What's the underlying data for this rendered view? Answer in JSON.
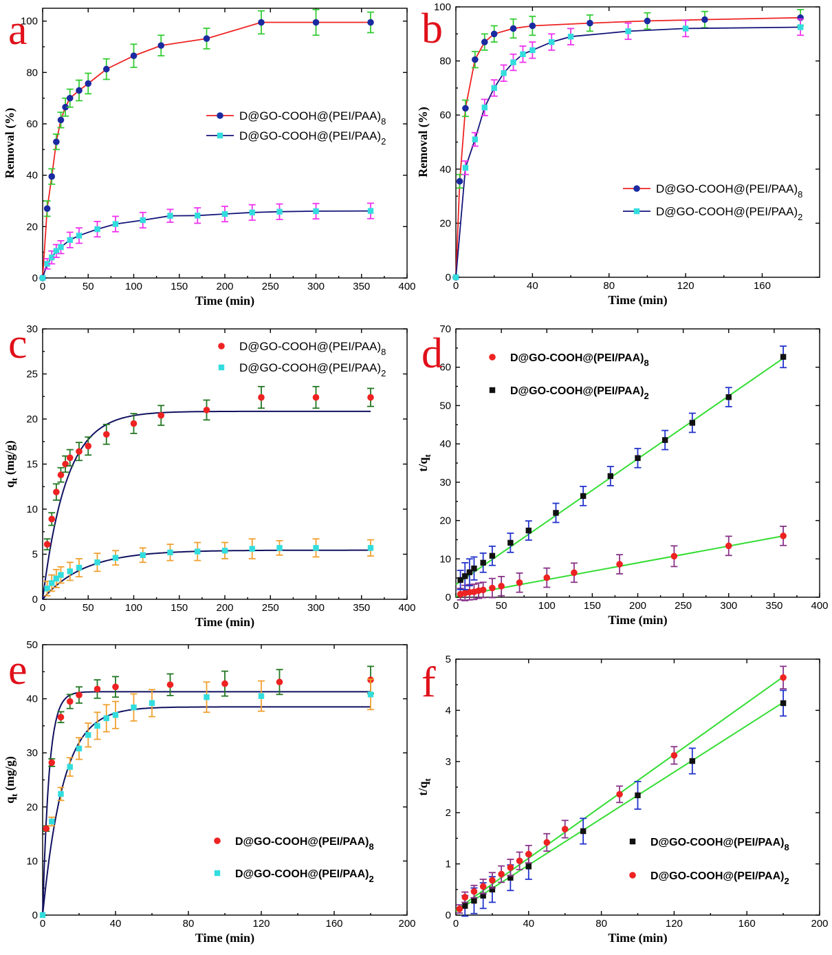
{
  "chart_data": [
    {
      "panel": "a",
      "type": "line",
      "xlabel": "Time  (min)",
      "ylabel": "Removal  (%)",
      "xlim": [
        0,
        400
      ],
      "ylim": [
        0,
        105
      ],
      "xticks": [
        0,
        50,
        100,
        150,
        200,
        250,
        300,
        350,
        400
      ],
      "yticks": [
        0,
        20,
        40,
        60,
        80,
        100
      ],
      "legend_position": "right-middle",
      "series": [
        {
          "name": "D@GO-COOH@(PEI/PAA)",
          "sub": "8",
          "line_color": "#ee2222",
          "marker": "circle",
          "marker_color": "#1a2aa0",
          "err_color": "#33cc33",
          "x": [
            0,
            5,
            10,
            15,
            20,
            25,
            30,
            40,
            50,
            70,
            100,
            130,
            180,
            240,
            300,
            360
          ],
          "y": [
            0,
            27,
            39.5,
            53,
            61.5,
            66.5,
            70,
            73,
            75.7,
            81.3,
            86.5,
            90.5,
            93.2,
            99.5,
            99.5,
            99.5
          ],
          "err": [
            0,
            3,
            3,
            3,
            3,
            3.5,
            3.5,
            4,
            4,
            4,
            4.5,
            4,
            4,
            4.5,
            5,
            4
          ]
        },
        {
          "name": "D@GO-COOH@(PEI/PAA)",
          "sub": "2",
          "line_color": "#14147a",
          "marker": "square",
          "marker_color": "#33dddd",
          "err_color": "#ee33ee",
          "x": [
            0,
            5,
            10,
            15,
            20,
            30,
            40,
            60,
            80,
            110,
            140,
            170,
            200,
            230,
            260,
            300,
            360
          ],
          "y": [
            0,
            5.5,
            8,
            10.5,
            12,
            14.8,
            16.5,
            19,
            21,
            22.5,
            24.2,
            24.3,
            24.9,
            25.5,
            25.8,
            26,
            26.1
          ],
          "err": [
            0,
            2,
            2.5,
            2.5,
            2.5,
            3,
            3,
            3,
            3,
            3,
            2.5,
            3,
            3,
            3,
            3,
            3,
            3
          ]
        }
      ]
    },
    {
      "panel": "b",
      "type": "line",
      "xlabel": "Time (min)",
      "ylabel": "Removal (%)",
      "xlim": [
        0,
        190
      ],
      "ylim": [
        0,
        100
      ],
      "xticks": [
        0,
        40,
        80,
        120,
        160
      ],
      "yticks": [
        0,
        20,
        40,
        60,
        80,
        100
      ],
      "legend_position": "bottom-right",
      "series": [
        {
          "name": "D@GO-COOH@(PEI/PAA)",
          "sub": "8",
          "line_color": "#ee2222",
          "marker": "circle",
          "marker_color": "#1a2aa0",
          "err_color": "#33cc33",
          "x": [
            0,
            2,
            5,
            10,
            15,
            20,
            30,
            40,
            70,
            100,
            130,
            180
          ],
          "y": [
            0,
            35.5,
            62.5,
            80.5,
            87,
            90,
            92,
            93,
            94,
            94.8,
            95.3,
            96
          ],
          "err": [
            0,
            2.5,
            3,
            3,
            3,
            3,
            3.5,
            3.5,
            3,
            3,
            3,
            3
          ]
        },
        {
          "name": "D@GO-COOH@(PEI/PAA)",
          "sub": "2",
          "line_color": "#14147a",
          "marker": "square",
          "marker_color": "#33dddd",
          "err_color": "#ee33ee",
          "x": [
            0,
            5,
            10,
            15,
            20,
            25,
            30,
            35,
            40,
            50,
            60,
            90,
            120,
            180
          ],
          "y": [
            0,
            40.5,
            51,
            62.8,
            70,
            75.5,
            79.5,
            82.5,
            84,
            87,
            89,
            91,
            92,
            92.5
          ],
          "err": [
            0,
            2.5,
            2.5,
            3,
            3,
            3,
            3,
            3,
            3,
            3,
            3,
            3,
            3,
            3
          ]
        }
      ]
    },
    {
      "panel": "c",
      "type": "scatter",
      "xlabel": "Time (min)",
      "ylabel": "q",
      "ylabel_sub": "t",
      "ylabel_unit": " (mg/g)",
      "xlim": [
        0,
        400
      ],
      "ylim": [
        0,
        30
      ],
      "xticks": [
        0,
        50,
        100,
        150,
        200,
        250,
        300,
        350,
        400
      ],
      "yticks": [
        0,
        5,
        10,
        15,
        20,
        25,
        30
      ],
      "legend_position": "top-right",
      "fit_color": "#101060",
      "series": [
        {
          "name": "D@GO-COOH@(PEI/PAA)",
          "sub": "8",
          "marker": "circle",
          "marker_color": "#ee2222",
          "err_color": "#227722",
          "x": [
            5,
            10,
            15,
            20,
            25,
            30,
            40,
            50,
            70,
            100,
            130,
            180,
            240,
            300,
            360
          ],
          "y": [
            6.1,
            8.9,
            11.9,
            13.8,
            15,
            15.7,
            16.4,
            17,
            18.3,
            19.5,
            20.4,
            21,
            22.4,
            22.4,
            22.4
          ],
          "err": [
            0.6,
            0.7,
            0.9,
            0.8,
            0.9,
            0.9,
            1,
            1,
            1.1,
            1.1,
            1.1,
            1.1,
            1.2,
            1.2,
            1
          ],
          "fit": {
            "qe": 20.85,
            "k": 0.038
          }
        },
        {
          "name": "D@GO-COOH@(PEI/PAA)",
          "sub": "2",
          "marker": "square",
          "marker_color": "#33dddd",
          "err_color": "#f0a030",
          "x": [
            5,
            10,
            15,
            20,
            30,
            40,
            60,
            80,
            110,
            140,
            170,
            200,
            230,
            260,
            300,
            360
          ],
          "y": [
            1.2,
            1.8,
            2.3,
            2.7,
            3.1,
            3.5,
            4.1,
            4.6,
            4.9,
            5.2,
            5.3,
            5.4,
            5.6,
            5.7,
            5.7,
            5.7
          ],
          "err": [
            0.8,
            0.9,
            1,
            0.9,
            1,
            1,
            1,
            0.8,
            0.8,
            0.9,
            1,
            0.9,
            1.1,
            0.8,
            1,
            0.9
          ],
          "fit": {
            "qe": 5.45,
            "k": 0.022
          }
        }
      ]
    },
    {
      "panel": "d",
      "type": "scatter",
      "xlabel": "Time (min)",
      "ylabel": "t/q",
      "ylabel_sub": "t",
      "xlim": [
        0,
        400
      ],
      "ylim": [
        0,
        70
      ],
      "xticks": [
        0,
        50,
        100,
        150,
        200,
        250,
        300,
        350,
        400
      ],
      "yticks": [
        0,
        10,
        20,
        30,
        40,
        50,
        60,
        70
      ],
      "legend_position": "top-left",
      "fit_color": "#33dd33",
      "series": [
        {
          "name": "D@GO-COOH@(PEI/PAA)",
          "sub": "8",
          "marker": "circle",
          "marker_color": "#ee2222",
          "err_color": "#883388",
          "x": [
            5,
            10,
            15,
            20,
            25,
            30,
            40,
            50,
            70,
            100,
            130,
            180,
            240,
            300,
            360
          ],
          "y": [
            0.8,
            1.1,
            1.3,
            1.4,
            1.7,
            1.9,
            2.4,
            2.9,
            3.8,
            5.1,
            6.4,
            8.6,
            10.7,
            13.4,
            16
          ],
          "err": [
            1.5,
            2,
            2,
            2,
            2,
            2,
            2.5,
            2.5,
            2.5,
            2.5,
            2.5,
            2.5,
            2.7,
            2.5,
            2.5
          ],
          "fit_line": [
            0.2,
            0.0438
          ]
        },
        {
          "name": "D@GO-COOH@(PEI/PAA)",
          "sub": "2",
          "marker": "square",
          "marker_color": "#111111",
          "err_color": "#2233cc",
          "x": [
            5,
            10,
            15,
            20,
            30,
            40,
            60,
            80,
            110,
            140,
            170,
            200,
            230,
            260,
            300,
            360
          ],
          "y": [
            4.5,
            5.5,
            6.5,
            7.5,
            9,
            10.8,
            14.2,
            17.4,
            22,
            26.4,
            31.6,
            36.3,
            41,
            45.5,
            52.2,
            62.7
          ],
          "err": [
            2.5,
            3.5,
            3.5,
            3,
            2.5,
            2.5,
            2.5,
            2.5,
            2.5,
            2.5,
            2.5,
            2.5,
            2.5,
            2.5,
            2.5,
            2.8
          ],
          "fit_line": [
            3.3,
            0.164
          ]
        }
      ]
    },
    {
      "panel": "e",
      "type": "scatter",
      "xlabel": "Time (min)",
      "ylabel": "q",
      "ylabel_sub": "t",
      "ylabel_unit": " (mg/g)",
      "xlim": [
        0,
        200
      ],
      "ylim": [
        0,
        50
      ],
      "xticks": [
        0,
        40,
        80,
        120,
        160,
        200
      ],
      "yticks": [
        0,
        10,
        20,
        30,
        40,
        50
      ],
      "legend_position": "bottom-right",
      "fit_color": "#101060",
      "series": [
        {
          "name": "D@GO-COOH@(PEI/PAA)",
          "sub": "8",
          "marker": "circle",
          "marker_color": "#ee2222",
          "err_color": "#227722",
          "x": [
            2,
            5,
            10,
            15,
            20,
            30,
            40,
            70,
            100,
            130,
            180
          ],
          "y": [
            16,
            28.2,
            36.6,
            39.5,
            40.7,
            41.8,
            42.2,
            42.6,
            42.8,
            43.1,
            43.5
          ],
          "err": [
            0.5,
            0.7,
            1,
            1.3,
            1.5,
            1.7,
            1.9,
            2,
            2.3,
            2.3,
            2.5
          ],
          "fit": {
            "qe": 41.3,
            "k": 0.28
          }
        },
        {
          "name": "D@GO-COOH@(PEI/PAA)",
          "sub": "2",
          "marker": "square",
          "marker_color": "#33dddd",
          "err_color": "#f0a030",
          "x": [
            0,
            5,
            10,
            15,
            20,
            25,
            30,
            35,
            40,
            50,
            60,
            90,
            120,
            180
          ],
          "y": [
            0,
            17.3,
            22.4,
            27.4,
            30.8,
            33.3,
            35,
            36.4,
            37,
            38.4,
            39.2,
            40.3,
            40.5,
            40.8
          ],
          "err": [
            0,
            0.8,
            1.2,
            1.7,
            2,
            2.2,
            2.5,
            2.5,
            2.5,
            2.5,
            2.5,
            2.8,
            2.8,
            2.8
          ],
          "fit": {
            "qe": 38.5,
            "k": 0.088
          }
        }
      ]
    },
    {
      "panel": "f",
      "type": "scatter",
      "xlabel": "Time (min)",
      "ylabel": "t/q",
      "ylabel_sub": "t",
      "xlim": [
        0,
        200
      ],
      "ylim": [
        0,
        5
      ],
      "xticks": [
        0,
        40,
        80,
        120,
        160,
        200
      ],
      "yticks": [
        0,
        1,
        2,
        3,
        4,
        5
      ],
      "legend_position": "bottom-right",
      "fit_color": "#33dd33",
      "series": [
        {
          "name": "D@GO-COOH@(PEI/PAA)",
          "sub": "8",
          "marker": "square",
          "marker_color": "#111111",
          "err_color": "#2233cc",
          "x": [
            5,
            10,
            15,
            20,
            30,
            40,
            70,
            100,
            130,
            180
          ],
          "y": [
            0.18,
            0.28,
            0.38,
            0.5,
            0.73,
            0.95,
            1.64,
            2.34,
            3.01,
            4.14
          ],
          "err": [
            0.2,
            0.25,
            0.25,
            0.25,
            0.25,
            0.25,
            0.25,
            0.27,
            0.25,
            0.25
          ],
          "fit_line": [
            0.07,
            0.0227
          ]
        },
        {
          "name": "D@GO-COOH@(PEI/PAA)",
          "sub": "2",
          "marker": "circle",
          "marker_color": "#ee2222",
          "err_color": "#883388",
          "x": [
            2,
            5,
            10,
            15,
            20,
            25,
            30,
            35,
            40,
            50,
            60,
            90,
            120,
            180
          ],
          "y": [
            0.12,
            0.35,
            0.46,
            0.56,
            0.68,
            0.8,
            0.93,
            1.06,
            1.19,
            1.42,
            1.68,
            2.36,
            3.12,
            4.64
          ],
          "err": [
            0.08,
            0.1,
            0.12,
            0.14,
            0.15,
            0.16,
            0.16,
            0.17,
            0.17,
            0.17,
            0.17,
            0.16,
            0.17,
            0.22
          ],
          "fit_line": [
            0.1,
            0.0253
          ]
        }
      ]
    }
  ]
}
